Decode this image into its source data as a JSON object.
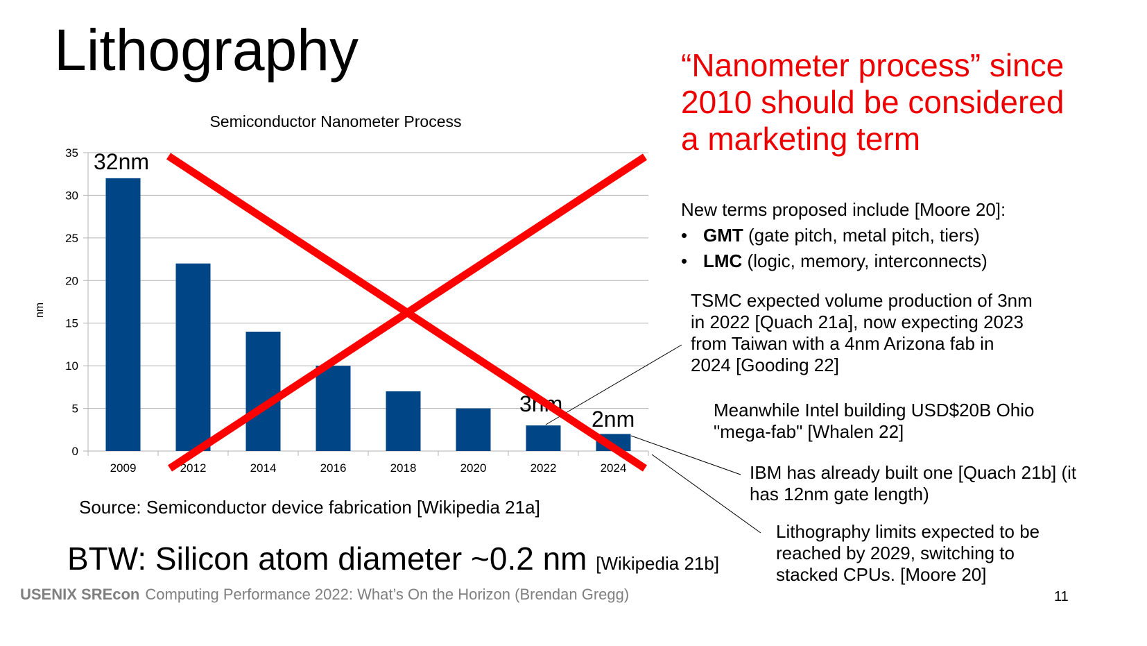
{
  "slide": {
    "title": "Lithography",
    "red_heading": "“Nanometer process” since 2010 should be considered a marketing term",
    "new_terms_intro": "New terms proposed include [Moore 20]:",
    "terms": [
      {
        "bold": "GMT",
        "text": " (gate pitch, metal pitch, tiers)"
      },
      {
        "bold": "LMC",
        "text": " (logic, memory, interconnects)"
      }
    ],
    "notes": [
      "TSMC expected volume production of 3nm in 2022 [Quach 21a], now expecting 2023 from Taiwan with a 4nm Arizona fab in 2024 [Gooding 22]",
      "Meanwhile Intel building USD$20B Ohio \"mega-fab\" [Whalen 22]",
      "IBM has already built one [Quach 21b] (it has 12nm gate length)",
      "Lithography limits expected to be reached by 2029, switching to stacked CPUs. [Moore 20]"
    ],
    "source": "Source: Semiconductor device fabrication [Wikipedia 21a]",
    "btw": "BTW: Silicon atom diameter ~0.2 nm",
    "btw_ref": "[Wikipedia 21b]",
    "footer_brand": "USENIX SREcon",
    "footer_text": "Computing Performance 2022: What’s On the Horizon (Brendan Gregg)",
    "page_number": "11"
  },
  "chart_data": {
    "type": "bar",
    "title": "Semiconductor Nanometer Process",
    "xlabel": "",
    "ylabel": "nm",
    "categories": [
      "2009",
      "2012",
      "2014",
      "2016",
      "2018",
      "2020",
      "2022",
      "2024"
    ],
    "values": [
      32,
      22,
      14,
      10,
      7,
      5,
      3,
      2
    ],
    "ylim": [
      0,
      35
    ],
    "yticks": [
      0,
      5,
      10,
      15,
      20,
      25,
      30,
      35
    ],
    "grid": true,
    "bar_color": "#004586",
    "annotations": [
      {
        "category": "2009",
        "text": "32nm"
      },
      {
        "category": "2022",
        "text": "3nm"
      },
      {
        "category": "2024",
        "text": "2nm"
      }
    ],
    "overlay": "red X crossing out chart",
    "overlay_color": "#ff0000"
  }
}
